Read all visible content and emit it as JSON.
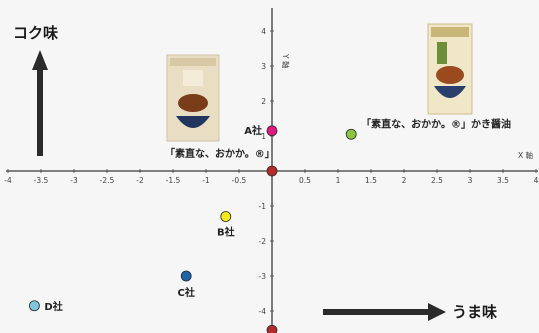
{
  "chart_data": {
    "type": "scatter",
    "xlabel": "X 軸",
    "ylabel": "Y 軸",
    "xlim": [
      -4,
      4
    ],
    "ylim": [
      -4.5,
      4.5
    ],
    "x_ticks": [
      "-4",
      "-3.5",
      "-3",
      "-2.5",
      "-2",
      "-1.5",
      "-1",
      "-0.5",
      "0.5",
      "1",
      "1.5",
      "2",
      "2.5",
      "3",
      "3.5",
      "4"
    ],
    "y_ticks": [
      "4",
      "3",
      "2",
      "1",
      "-1",
      "-2",
      "-3",
      "-4"
    ],
    "y_axis_label": "コク味",
    "x_axis_label": "うま味",
    "points": [
      {
        "label": "A社",
        "x": 0,
        "y": 1.15,
        "color": "#e0197d"
      },
      {
        "label": "B社",
        "x": -0.7,
        "y": -1.3,
        "color": "#f2ea1c"
      },
      {
        "label": "C社",
        "x": -1.3,
        "y": -3.0,
        "color": "#1f63a8"
      },
      {
        "label": "D社",
        "x": -3.6,
        "y": -3.85,
        "color": "#7fc6df"
      },
      {
        "label": "",
        "x": 0,
        "y": 0,
        "color": "#b52a2a"
      },
      {
        "label": "",
        "x": 0,
        "y": -4.55,
        "color": "#b52a2a"
      },
      {
        "label": "「素直な、おかか。®」かき醤油",
        "x": 1.2,
        "y": 1.05,
        "color": "#8cc63f"
      }
    ],
    "product_labels": [
      {
        "text": "「素直な、おかか。®」"
      }
    ]
  }
}
